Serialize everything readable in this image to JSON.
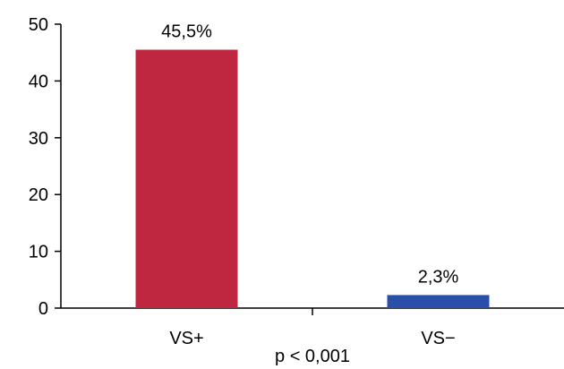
{
  "chart_data": {
    "type": "bar",
    "categories": [
      "VS+",
      "VS−"
    ],
    "values": [
      45.5,
      2.3
    ],
    "data_labels": [
      "45,5%",
      "2,3%"
    ],
    "bar_colors": [
      "#bf2640",
      "#2a4fa8"
    ],
    "ylim": [
      0,
      50
    ],
    "yticks": [
      0,
      10,
      20,
      30,
      40,
      50
    ],
    "ytick_labels": [
      "0",
      "10",
      "20",
      "30",
      "40",
      "50"
    ],
    "grid": false,
    "legend": "none",
    "annotation": "p < 0,001"
  }
}
